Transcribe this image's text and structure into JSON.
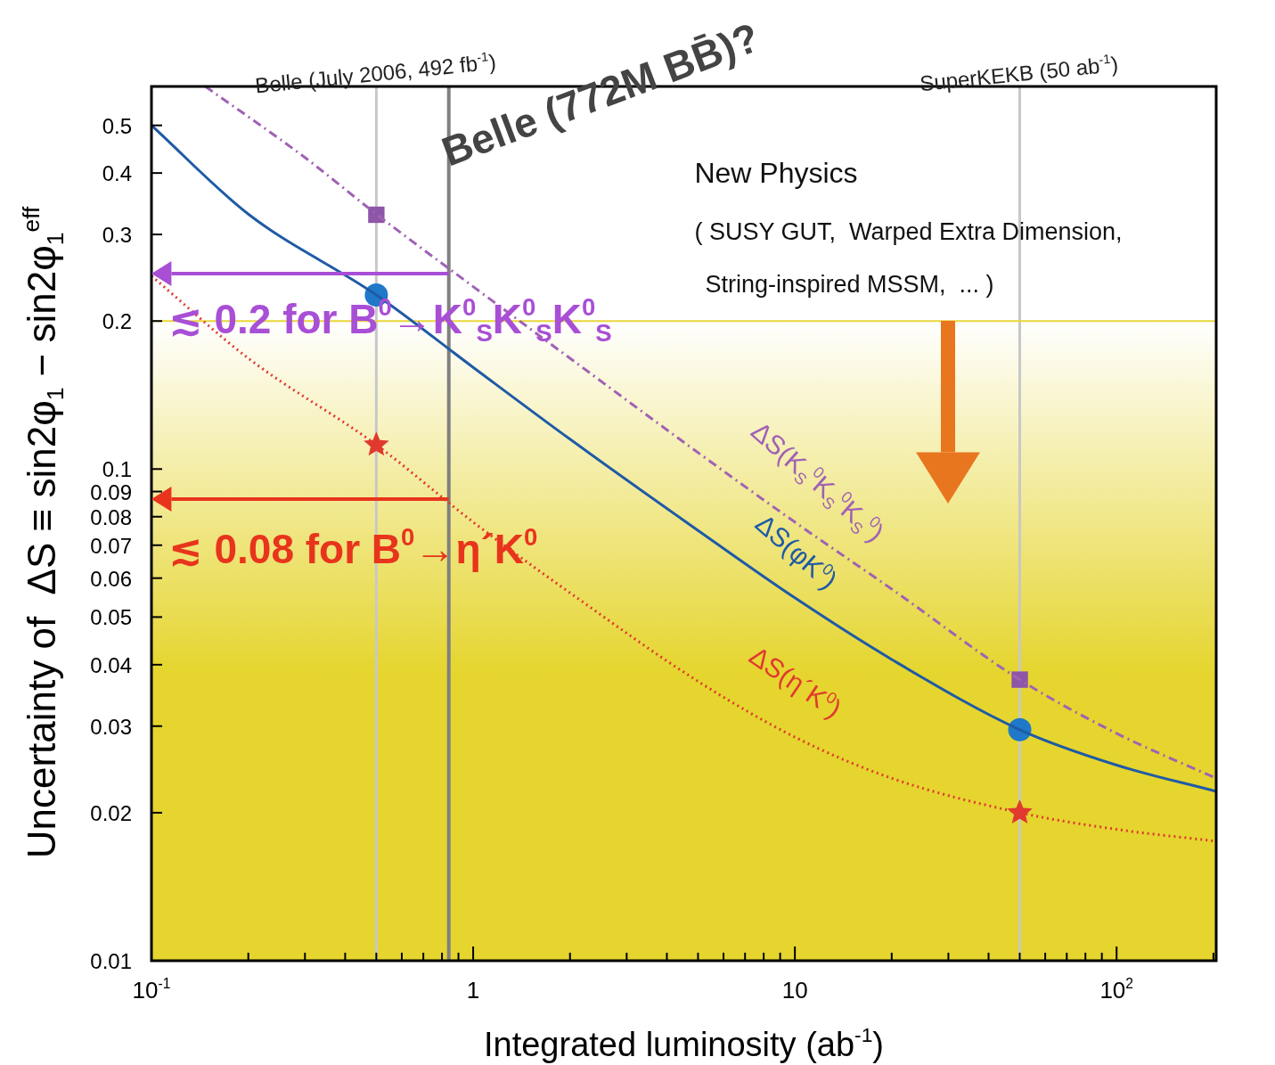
{
  "chart_data": {
    "type": "line",
    "xlabel": "Integrated luminosity (ab$^{-1}$)",
    "ylabel": "Uncertainty of  ΔS ≡ sin2φ$_{1}$ − sin2φ$_{1}$$^{eff}$",
    "log": "xy",
    "grid": false,
    "legend": false,
    "marker": "none",
    "xlim": [
      0.1,
      204
    ],
    "ylim": [
      0.01,
      0.6
    ],
    "xticks": [
      {
        "value": 0.1,
        "label": "10$^{-1}$"
      },
      {
        "value": 0.2,
        "label": null
      },
      {
        "value": 0.3,
        "label": null
      },
      {
        "value": 0.4,
        "label": null
      },
      {
        "value": 0.5,
        "label": null
      },
      {
        "value": 0.6,
        "label": null
      },
      {
        "value": 0.7,
        "label": null
      },
      {
        "value": 0.8,
        "label": null
      },
      {
        "value": 0.9,
        "label": null
      },
      {
        "value": 1,
        "label": "1"
      },
      {
        "value": 2,
        "label": null
      },
      {
        "value": 3,
        "label": null
      },
      {
        "value": 4,
        "label": null
      },
      {
        "value": 5,
        "label": null
      },
      {
        "value": 6,
        "label": null
      },
      {
        "value": 7,
        "label": null
      },
      {
        "value": 8,
        "label": null
      },
      {
        "value": 9,
        "label": null
      },
      {
        "value": 10,
        "label": "10"
      },
      {
        "value": 20,
        "label": null
      },
      {
        "value": 30,
        "label": null
      },
      {
        "value": 40,
        "label": null
      },
      {
        "value": 50,
        "label": null
      },
      {
        "value": 60,
        "label": null
      },
      {
        "value": 70,
        "label": null
      },
      {
        "value": 80,
        "label": null
      },
      {
        "value": 90,
        "label": null
      },
      {
        "value": 100,
        "label": "10$^{2}$"
      },
      {
        "value": 200,
        "label": null
      }
    ],
    "yticks": [
      0.01,
      0.02,
      0.03,
      0.04,
      0.05,
      0.06,
      0.07,
      0.08,
      0.09,
      0.1,
      0.2,
      0.3,
      0.4,
      0.5
    ],
    "series": [
      {
        "name": "ΔS(K$_{S}$$^{0}$K$_{S}$$^{0}$K$_{S}$$^{0}$)",
        "color": "#a062b4",
        "line_style": "dashdot",
        "x": [
          0.147,
          0.3,
          0.5,
          1,
          2,
          5,
          10,
          20,
          50,
          100,
          204
        ],
        "values": [
          0.6,
          0.43,
          0.33,
          0.235,
          0.168,
          0.108,
          0.078,
          0.057,
          0.0373,
          0.029,
          0.0235
        ]
      },
      {
        "name": "ΔS(φK$^{0}$)",
        "color": "#1f5aa6",
        "line_style": "solid",
        "x": [
          0.1,
          0.2,
          0.5,
          1,
          2,
          5,
          10,
          20,
          50,
          100,
          204
        ],
        "values": [
          0.5,
          0.33,
          0.226,
          0.161,
          0.115,
          0.075,
          0.0547,
          0.041,
          0.0295,
          0.025,
          0.0221
        ]
      },
      {
        "name": "ΔS(η´K$^{0}$)",
        "color": "#e03a2f",
        "line_style": "dotted",
        "x": [
          0.1,
          0.2,
          0.5,
          1,
          2,
          5,
          10,
          20,
          50,
          100,
          204
        ],
        "values": [
          0.247,
          0.168,
          0.112,
          0.078,
          0.056,
          0.037,
          0.0285,
          0.0235,
          0.02,
          0.0185,
          0.0175
        ]
      },
      {
        "type": "scatter",
        "color": "#8e55a8",
        "marker": "square",
        "x": [
          0.5,
          50
        ],
        "values": [
          0.329,
          0.0373
        ]
      },
      {
        "type": "scatter",
        "color": "#1f78c8",
        "marker": "circle",
        "x": [
          0.5,
          50
        ],
        "values": [
          0.226,
          0.0295
        ]
      },
      {
        "type": "scatter",
        "color": "#e03a2f",
        "marker": "star",
        "x": [
          0.5,
          50
        ],
        "values": [
          0.112,
          0.02
        ]
      }
    ],
    "ref_lines": [
      {
        "axis": "x",
        "value": 0.5,
        "label": "Belle (July 2006, 492 fb$^{-1}$)",
        "color": "#c8c8c8"
      },
      {
        "axis": "x",
        "value": 0.84,
        "label": "Belle (772M BB̄)?",
        "color": "#808080"
      },
      {
        "axis": "x",
        "value": 50,
        "label": "SuperKEKB (50 ab$^{-1}$)",
        "color": "#c8c8c8"
      },
      {
        "axis": "y",
        "value": 0.2,
        "color": "#e8d63a"
      }
    ],
    "bands": [
      {
        "axis": "y",
        "from": 0.01,
        "to": 0.2,
        "color": "#e5d52e"
      }
    ],
    "annotations": [
      "New Physics",
      "( SUSY GUT,  Warped Extra Dimension,",
      "String-inspired MSSM,  ... )",
      "≲ 0.2 for B$^{0}$→K$^{0}$$_{S}$K$^{0}$$_{S}$K$^{0}$$_{S}$",
      "≲ 0.08 for B$^{0}$→η´K$^{0}$"
    ]
  }
}
